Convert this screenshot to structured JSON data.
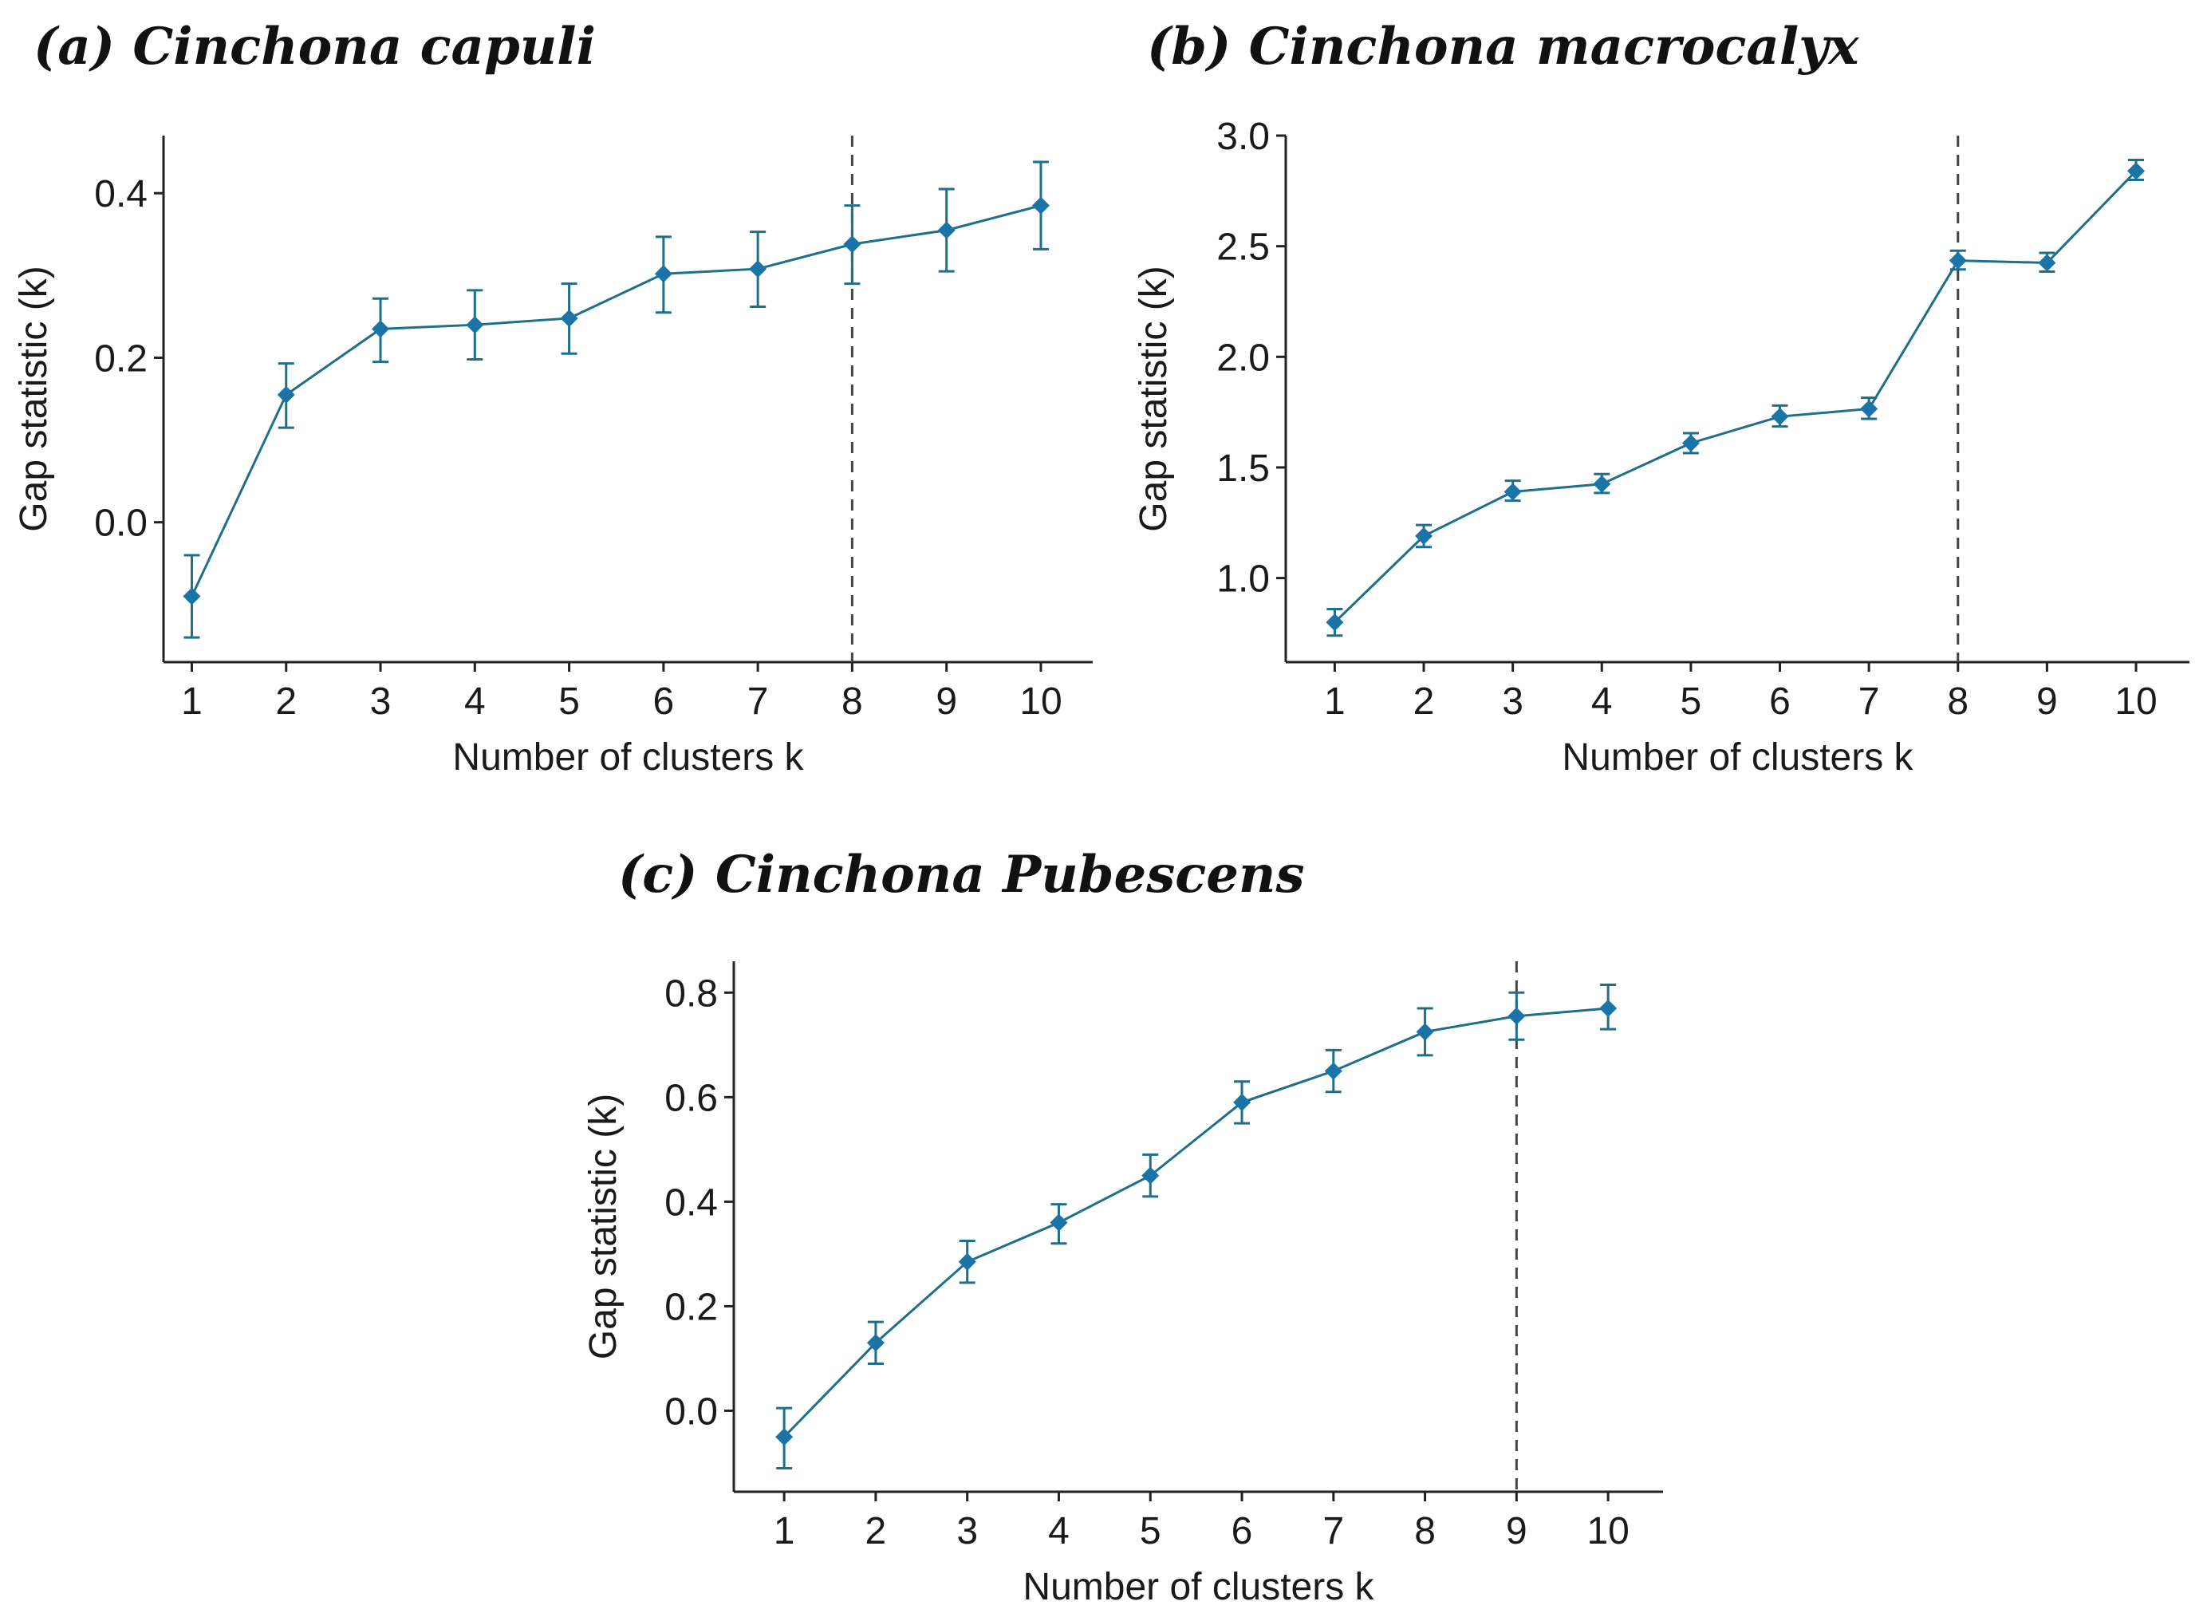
{
  "chart_data": [
    {
      "type": "line",
      "title": "(a) Cinchona capuli",
      "xlabel": "Number of clusters k",
      "ylabel": "Gap statistic (k)",
      "x": [
        1,
        2,
        3,
        4,
        5,
        6,
        7,
        8,
        9,
        10
      ],
      "values": [
        -0.09,
        0.155,
        0.235,
        0.24,
        0.248,
        0.302,
        0.308,
        0.338,
        0.355,
        0.385
      ],
      "err_low": [
        -0.14,
        0.115,
        0.195,
        0.198,
        0.205,
        0.255,
        0.262,
        0.29,
        0.305,
        0.332
      ],
      "err_high": [
        -0.04,
        0.193,
        0.272,
        0.282,
        0.29,
        0.347,
        0.353,
        0.385,
        0.405,
        0.438
      ],
      "optimal_k": 8,
      "xlim": [
        0.7,
        10.55
      ],
      "ylim": [
        -0.17,
        0.47
      ],
      "yticks": [
        0.0,
        0.2,
        0.4
      ],
      "ytick_labels": [
        "0.0",
        "0.2",
        "0.4"
      ],
      "xticks": [
        1,
        2,
        3,
        4,
        5,
        6,
        7,
        8,
        9,
        10
      ],
      "color": "#1f6f8b",
      "marker_color": "#1a74a8",
      "grid": false
    },
    {
      "type": "line",
      "title": "(b) Cinchona macrocalyx",
      "xlabel": "Number of clusters k",
      "ylabel": "Gap statistic (k)",
      "x": [
        1,
        2,
        3,
        4,
        5,
        6,
        7,
        8,
        9,
        10
      ],
      "values": [
        0.8,
        1.19,
        1.39,
        1.425,
        1.61,
        1.73,
        1.765,
        2.435,
        2.425,
        2.84
      ],
      "err_low": [
        0.74,
        1.14,
        1.35,
        1.385,
        1.565,
        1.685,
        1.72,
        2.395,
        2.385,
        2.8
      ],
      "err_high": [
        0.86,
        1.24,
        1.44,
        1.47,
        1.655,
        1.78,
        1.815,
        2.48,
        2.47,
        2.89
      ],
      "optimal_k": 8,
      "xlim": [
        0.45,
        10.6
      ],
      "ylim": [
        0.62,
        3.0
      ],
      "yticks": [
        1.0,
        1.5,
        2.0,
        2.5,
        3.0
      ],
      "ytick_labels": [
        "1.0",
        "1.5",
        "2.0",
        "2.5",
        "3.0"
      ],
      "xticks": [
        1,
        2,
        3,
        4,
        5,
        6,
        7,
        8,
        9,
        10
      ],
      "color": "#1f6f8b",
      "marker_color": "#1a74a8",
      "grid": false
    },
    {
      "type": "line",
      "title": "(c) Cinchona Pubescens",
      "xlabel": "Number of clusters k",
      "ylabel": "Gap statistic (k)",
      "x": [
        1,
        2,
        3,
        4,
        5,
        6,
        7,
        8,
        9,
        10
      ],
      "values": [
        -0.05,
        0.13,
        0.285,
        0.36,
        0.45,
        0.59,
        0.65,
        0.725,
        0.755,
        0.77
      ],
      "err_low": [
        -0.11,
        0.09,
        0.245,
        0.32,
        0.41,
        0.55,
        0.61,
        0.68,
        0.71,
        0.73
      ],
      "err_high": [
        0.005,
        0.17,
        0.325,
        0.395,
        0.49,
        0.63,
        0.69,
        0.77,
        0.8,
        0.815
      ],
      "optimal_k": 9,
      "xlim": [
        0.45,
        10.6
      ],
      "ylim": [
        -0.155,
        0.86
      ],
      "yticks": [
        0.0,
        0.2,
        0.4,
        0.6,
        0.8
      ],
      "ytick_labels": [
        "0.0",
        "0.2",
        "0.4",
        "0.6",
        "0.8"
      ],
      "xticks": [
        1,
        2,
        3,
        4,
        5,
        6,
        7,
        8,
        9,
        10
      ],
      "color": "#1f6f8b",
      "marker_color": "#1a74a8",
      "grid": false
    }
  ]
}
